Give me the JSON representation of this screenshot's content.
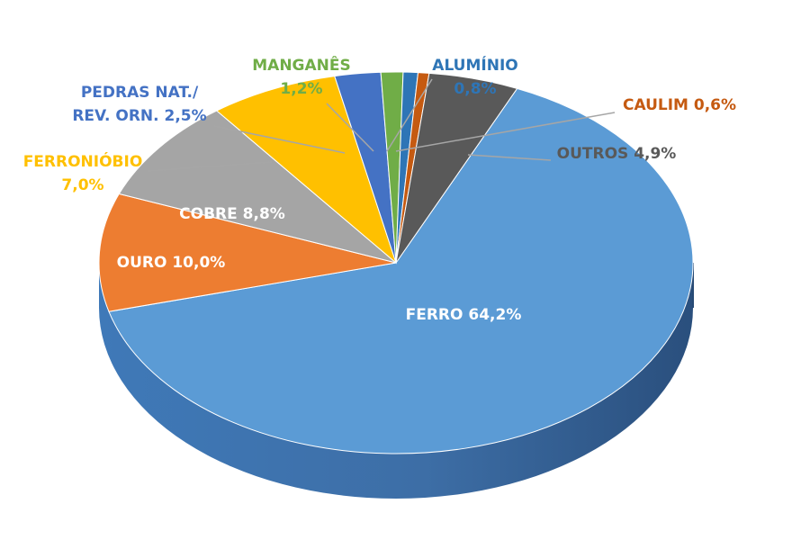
{
  "chart_data": {
    "type": "pie",
    "title": "",
    "slices": [
      {
        "name": "FERRO",
        "value": 64.2,
        "label": "FERRO 64,2%",
        "color": "#5b9bd5"
      },
      {
        "name": "OURO",
        "value": 10.0,
        "label": "OURO 10,0%",
        "color": "#ed7d31"
      },
      {
        "name": "COBRE",
        "value": 8.8,
        "label": "COBRE 8,8%",
        "color": "#a5a5a5"
      },
      {
        "name": "FERRONIÓBIO",
        "value": 7.0,
        "label": [
          "FERRONIÓBIO",
          "7,0%"
        ],
        "color": "#ffc000",
        "label_color": "#ffc000"
      },
      {
        "name": "PEDRAS NAT./ REV. ORN.",
        "value": 2.5,
        "label": [
          "PEDRAS NAT./",
          "REV. ORN. 2,5%"
        ],
        "color": "#4472c4",
        "label_color": "#4472c4"
      },
      {
        "name": "MANGANÊS",
        "value": 1.2,
        "label": [
          "MANGANÊS",
          "1,2%"
        ],
        "color": "#70ad47",
        "label_color": "#70ad47"
      },
      {
        "name": "ALUMÍNIO",
        "value": 0.8,
        "label": [
          "ALUMÍNIO",
          "0,8%"
        ],
        "color": "#2e75b6",
        "label_color": "#2e75b6"
      },
      {
        "name": "CAULIM",
        "value": 0.6,
        "label": "CAULIM 0,6%",
        "color": "#c55a11",
        "label_color": "#c55a11"
      },
      {
        "name": "OUTROS",
        "value": 4.9,
        "label": "OUTROS 4,9%",
        "color": "#595959",
        "label_color": "#595959"
      }
    ],
    "legend": "none",
    "style": "3d"
  }
}
